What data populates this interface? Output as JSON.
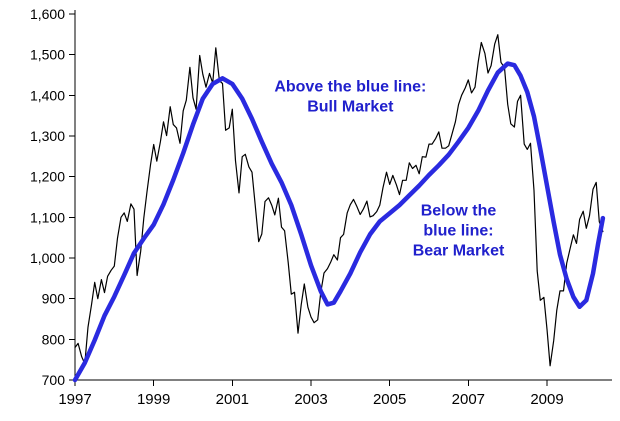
{
  "chart_data": {
    "type": "line",
    "title": "",
    "xlabel": "",
    "ylabel": "",
    "xlim": [
      1997,
      2010.5
    ],
    "ylim": [
      700,
      1600
    ],
    "grid": false,
    "legend": "none",
    "background": "#ffffff",
    "axis_color": "#000000",
    "y_ticks": {
      "values": [
        700,
        800,
        900,
        1000,
        1100,
        1200,
        1300,
        1400,
        1500,
        1600
      ],
      "labels": [
        "700",
        "800",
        "900",
        "1,000",
        "1,100",
        "1,200",
        "1,300",
        "1,400",
        "1,500",
        "1,600"
      ]
    },
    "x_ticks": {
      "values": [
        1997,
        1999,
        2001,
        2003,
        2005,
        2007,
        2009
      ],
      "labels": [
        "1997",
        "1999",
        "2001",
        "2003",
        "2005",
        "2007",
        "2009"
      ]
    },
    "series": [
      {
        "name": "stock-index",
        "color": "#000000",
        "width": 1.2,
        "points": [
          [
            1997.0,
            780
          ],
          [
            1997.08,
            790
          ],
          [
            1997.17,
            757
          ],
          [
            1997.25,
            740
          ],
          [
            1997.33,
            830
          ],
          [
            1997.42,
            885
          ],
          [
            1997.5,
            940
          ],
          [
            1997.58,
            900
          ],
          [
            1997.67,
            947
          ],
          [
            1997.75,
            915
          ],
          [
            1997.83,
            955
          ],
          [
            1997.92,
            970
          ],
          [
            1998.0,
            980
          ],
          [
            1998.08,
            1049
          ],
          [
            1998.17,
            1100
          ],
          [
            1998.25,
            1111
          ],
          [
            1998.33,
            1090
          ],
          [
            1998.42,
            1133
          ],
          [
            1998.5,
            1120
          ],
          [
            1998.58,
            957
          ],
          [
            1998.67,
            1017
          ],
          [
            1998.75,
            1098
          ],
          [
            1998.83,
            1163
          ],
          [
            1998.92,
            1229
          ],
          [
            1999.0,
            1279
          ],
          [
            1999.08,
            1238
          ],
          [
            1999.17,
            1286
          ],
          [
            1999.25,
            1335
          ],
          [
            1999.33,
            1301
          ],
          [
            1999.42,
            1372
          ],
          [
            1999.5,
            1328
          ],
          [
            1999.58,
            1320
          ],
          [
            1999.67,
            1282
          ],
          [
            1999.75,
            1362
          ],
          [
            1999.83,
            1388
          ],
          [
            1999.92,
            1469
          ],
          [
            2000.0,
            1394
          ],
          [
            2000.08,
            1366
          ],
          [
            2000.17,
            1498
          ],
          [
            2000.25,
            1452
          ],
          [
            2000.33,
            1420
          ],
          [
            2000.42,
            1454
          ],
          [
            2000.5,
            1430
          ],
          [
            2000.58,
            1517
          ],
          [
            2000.67,
            1436
          ],
          [
            2000.75,
            1429
          ],
          [
            2000.83,
            1314
          ],
          [
            2000.92,
            1320
          ],
          [
            2001.0,
            1366
          ],
          [
            2001.08,
            1239
          ],
          [
            2001.17,
            1160
          ],
          [
            2001.25,
            1249
          ],
          [
            2001.33,
            1255
          ],
          [
            2001.42,
            1224
          ],
          [
            2001.5,
            1211
          ],
          [
            2001.58,
            1133
          ],
          [
            2001.67,
            1040
          ],
          [
            2001.75,
            1059
          ],
          [
            2001.83,
            1139
          ],
          [
            2001.92,
            1148
          ],
          [
            2002.0,
            1130
          ],
          [
            2002.08,
            1106
          ],
          [
            2002.17,
            1147
          ],
          [
            2002.25,
            1076
          ],
          [
            2002.33,
            1067
          ],
          [
            2002.42,
            989
          ],
          [
            2002.5,
            911
          ],
          [
            2002.58,
            916
          ],
          [
            2002.67,
            815
          ],
          [
            2002.75,
            885
          ],
          [
            2002.83,
            936
          ],
          [
            2002.92,
            879
          ],
          [
            2003.0,
            855
          ],
          [
            2003.08,
            841
          ],
          [
            2003.17,
            848
          ],
          [
            2003.25,
            916
          ],
          [
            2003.33,
            963
          ],
          [
            2003.42,
            974
          ],
          [
            2003.5,
            990
          ],
          [
            2003.58,
            1008
          ],
          [
            2003.67,
            995
          ],
          [
            2003.75,
            1050
          ],
          [
            2003.83,
            1058
          ],
          [
            2003.92,
            1111
          ],
          [
            2004.0,
            1131
          ],
          [
            2004.08,
            1144
          ],
          [
            2004.17,
            1126
          ],
          [
            2004.25,
            1107
          ],
          [
            2004.33,
            1120
          ],
          [
            2004.42,
            1140
          ],
          [
            2004.5,
            1101
          ],
          [
            2004.58,
            1104
          ],
          [
            2004.67,
            1114
          ],
          [
            2004.75,
            1130
          ],
          [
            2004.83,
            1173
          ],
          [
            2004.92,
            1211
          ],
          [
            2005.0,
            1181
          ],
          [
            2005.08,
            1203
          ],
          [
            2005.17,
            1180
          ],
          [
            2005.25,
            1156
          ],
          [
            2005.33,
            1191
          ],
          [
            2005.42,
            1191
          ],
          [
            2005.5,
            1234
          ],
          [
            2005.58,
            1220
          ],
          [
            2005.67,
            1228
          ],
          [
            2005.75,
            1207
          ],
          [
            2005.83,
            1249
          ],
          [
            2005.92,
            1248
          ],
          [
            2006.0,
            1280
          ],
          [
            2006.08,
            1280
          ],
          [
            2006.17,
            1294
          ],
          [
            2006.25,
            1310
          ],
          [
            2006.33,
            1270
          ],
          [
            2006.42,
            1270
          ],
          [
            2006.5,
            1276
          ],
          [
            2006.58,
            1303
          ],
          [
            2006.67,
            1335
          ],
          [
            2006.75,
            1377
          ],
          [
            2006.83,
            1400
          ],
          [
            2006.92,
            1418
          ],
          [
            2007.0,
            1438
          ],
          [
            2007.08,
            1406
          ],
          [
            2007.17,
            1420
          ],
          [
            2007.25,
            1482
          ],
          [
            2007.33,
            1530
          ],
          [
            2007.42,
            1503
          ],
          [
            2007.5,
            1455
          ],
          [
            2007.58,
            1473
          ],
          [
            2007.67,
            1526
          ],
          [
            2007.75,
            1549
          ],
          [
            2007.83,
            1481
          ],
          [
            2007.92,
            1468
          ],
          [
            2008.0,
            1378
          ],
          [
            2008.08,
            1330
          ],
          [
            2008.17,
            1322
          ],
          [
            2008.25,
            1385
          ],
          [
            2008.33,
            1400
          ],
          [
            2008.42,
            1280
          ],
          [
            2008.5,
            1267
          ],
          [
            2008.58,
            1282
          ],
          [
            2008.67,
            1166
          ],
          [
            2008.75,
            968
          ],
          [
            2008.83,
            896
          ],
          [
            2008.92,
            903
          ],
          [
            2009.0,
            825
          ],
          [
            2009.08,
            735
          ],
          [
            2009.17,
            797
          ],
          [
            2009.25,
            872
          ],
          [
            2009.33,
            919
          ],
          [
            2009.42,
            919
          ],
          [
            2009.5,
            987
          ],
          [
            2009.58,
            1020
          ],
          [
            2009.67,
            1057
          ],
          [
            2009.75,
            1036
          ],
          [
            2009.83,
            1095
          ],
          [
            2009.92,
            1115
          ],
          [
            2010.0,
            1073
          ],
          [
            2010.08,
            1104
          ],
          [
            2010.17,
            1169
          ],
          [
            2010.25,
            1186
          ],
          [
            2010.33,
            1089
          ],
          [
            2010.42,
            1065
          ]
        ]
      },
      {
        "name": "smoothed-trend",
        "color": "#2a2ae0",
        "width": 4.5,
        "points": [
          [
            1997.0,
            700
          ],
          [
            1997.25,
            742
          ],
          [
            1997.5,
            798
          ],
          [
            1997.75,
            858
          ],
          [
            1998.0,
            905
          ],
          [
            1998.25,
            958
          ],
          [
            1998.5,
            1012
          ],
          [
            1998.75,
            1048
          ],
          [
            1999.0,
            1082
          ],
          [
            1999.25,
            1132
          ],
          [
            1999.5,
            1192
          ],
          [
            1999.75,
            1258
          ],
          [
            2000.0,
            1328
          ],
          [
            2000.25,
            1392
          ],
          [
            2000.5,
            1428
          ],
          [
            2000.75,
            1442
          ],
          [
            2001.0,
            1428
          ],
          [
            2001.25,
            1392
          ],
          [
            2001.5,
            1342
          ],
          [
            2001.75,
            1286
          ],
          [
            2002.0,
            1232
          ],
          [
            2002.25,
            1186
          ],
          [
            2002.5,
            1130
          ],
          [
            2002.75,
            1058
          ],
          [
            2003.0,
            982
          ],
          [
            2003.25,
            918
          ],
          [
            2003.42,
            886
          ],
          [
            2003.58,
            890
          ],
          [
            2003.75,
            918
          ],
          [
            2004.0,
            962
          ],
          [
            2004.25,
            1014
          ],
          [
            2004.5,
            1058
          ],
          [
            2004.75,
            1090
          ],
          [
            2005.0,
            1110
          ],
          [
            2005.25,
            1130
          ],
          [
            2005.5,
            1154
          ],
          [
            2005.75,
            1178
          ],
          [
            2006.0,
            1204
          ],
          [
            2006.25,
            1228
          ],
          [
            2006.5,
            1254
          ],
          [
            2006.75,
            1286
          ],
          [
            2007.0,
            1320
          ],
          [
            2007.25,
            1362
          ],
          [
            2007.5,
            1412
          ],
          [
            2007.75,
            1456
          ],
          [
            2008.0,
            1478
          ],
          [
            2008.17,
            1474
          ],
          [
            2008.33,
            1448
          ],
          [
            2008.5,
            1408
          ],
          [
            2008.67,
            1348
          ],
          [
            2008.83,
            1268
          ],
          [
            2009.0,
            1178
          ],
          [
            2009.17,
            1088
          ],
          [
            2009.33,
            1008
          ],
          [
            2009.5,
            948
          ],
          [
            2009.67,
            904
          ],
          [
            2009.83,
            880
          ],
          [
            2010.0,
            896
          ],
          [
            2010.17,
            962
          ],
          [
            2010.3,
            1035
          ],
          [
            2010.42,
            1098
          ]
        ]
      }
    ],
    "annotations": [
      {
        "name": "bull-market-annotation",
        "lines": [
          "Above the blue line:",
          "Bull Market"
        ],
        "x": 2004.0,
        "y": 1410,
        "color": "#2020cc"
      },
      {
        "name": "bear-market-annotation",
        "lines": [
          "Below the",
          "blue line:",
          "Bear Market"
        ],
        "x": 2006.75,
        "y": 1105,
        "color": "#2020cc"
      }
    ]
  }
}
